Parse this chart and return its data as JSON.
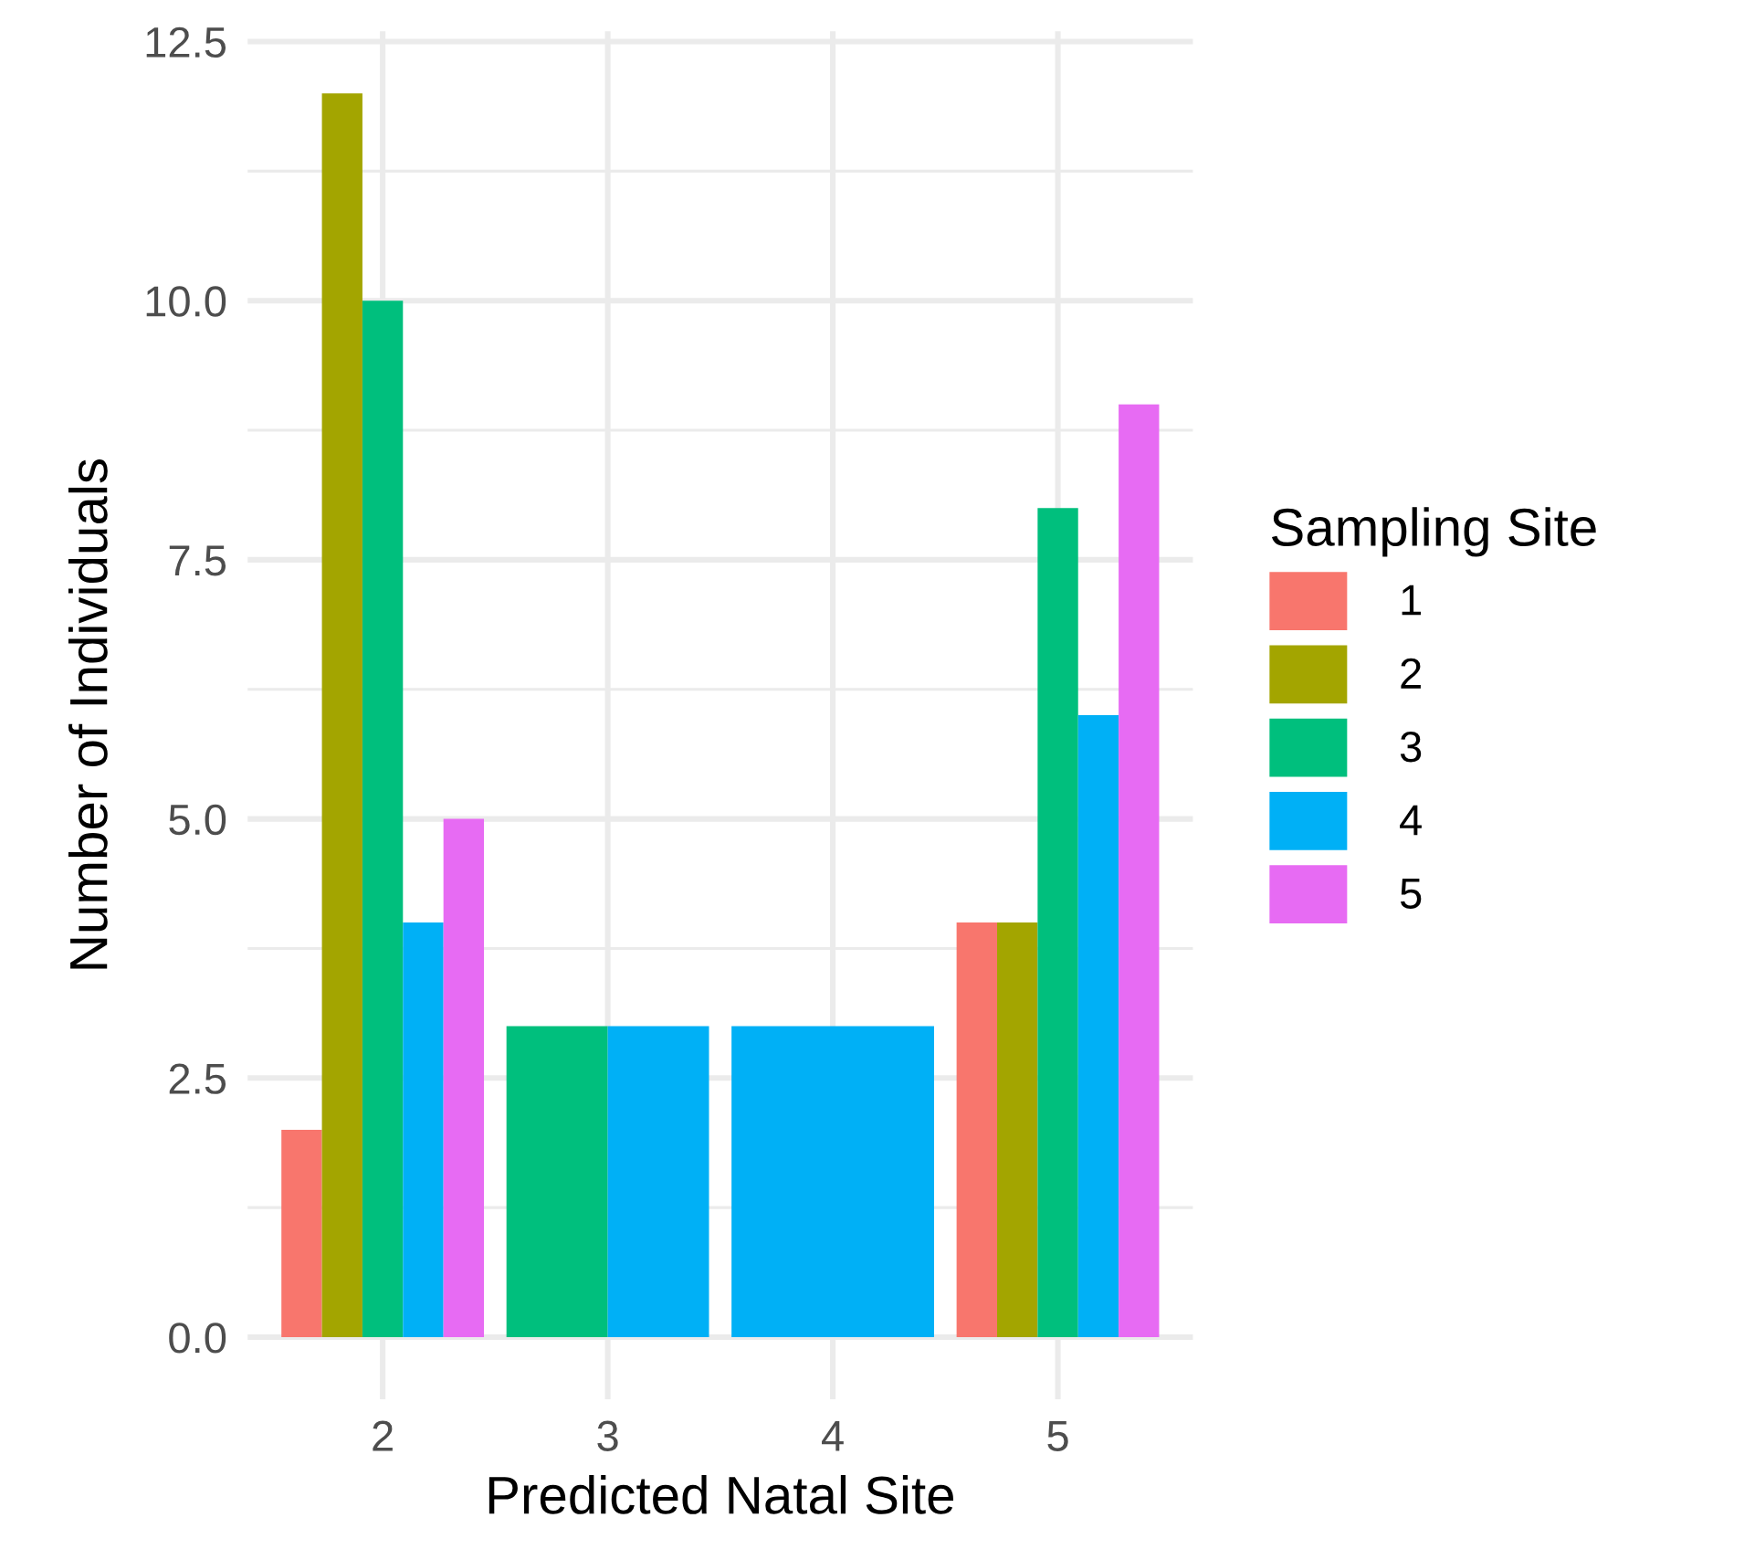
{
  "chart_data": {
    "type": "bar",
    "xlabel": "Predicted Natal Site",
    "ylabel": "Number of Individuals",
    "legend_title": "Sampling Site",
    "categories": [
      "2",
      "3",
      "4",
      "5"
    ],
    "series": [
      {
        "name": "1",
        "color": "#f8766d",
        "values": [
          2,
          null,
          null,
          4
        ]
      },
      {
        "name": "2",
        "color": "#a3a500",
        "values": [
          12,
          null,
          null,
          4
        ]
      },
      {
        "name": "3",
        "color": "#00bf7d",
        "values": [
          10,
          3,
          null,
          8
        ]
      },
      {
        "name": "4",
        "color": "#00b0f6",
        "values": [
          4,
          3,
          3,
          6
        ]
      },
      {
        "name": "5",
        "color": "#e76bf3",
        "values": [
          5,
          null,
          null,
          9
        ]
      }
    ],
    "ylim": [
      -0.6,
      12.6
    ],
    "yticks": [
      {
        "value": 0,
        "label": "0.0"
      },
      {
        "value": 1.25,
        "label": null
      },
      {
        "value": 2.5,
        "label": "2.5"
      },
      {
        "value": 3.75,
        "label": null
      },
      {
        "value": 5,
        "label": "5.0"
      },
      {
        "value": 6.25,
        "label": null
      },
      {
        "value": 7.5,
        "label": "7.5"
      },
      {
        "value": 8.75,
        "label": null
      },
      {
        "value": 10,
        "label": "10.0"
      },
      {
        "value": 11.25,
        "label": null
      },
      {
        "value": 12.5,
        "label": "12.5"
      }
    ],
    "grid": true,
    "legend": "right"
  }
}
